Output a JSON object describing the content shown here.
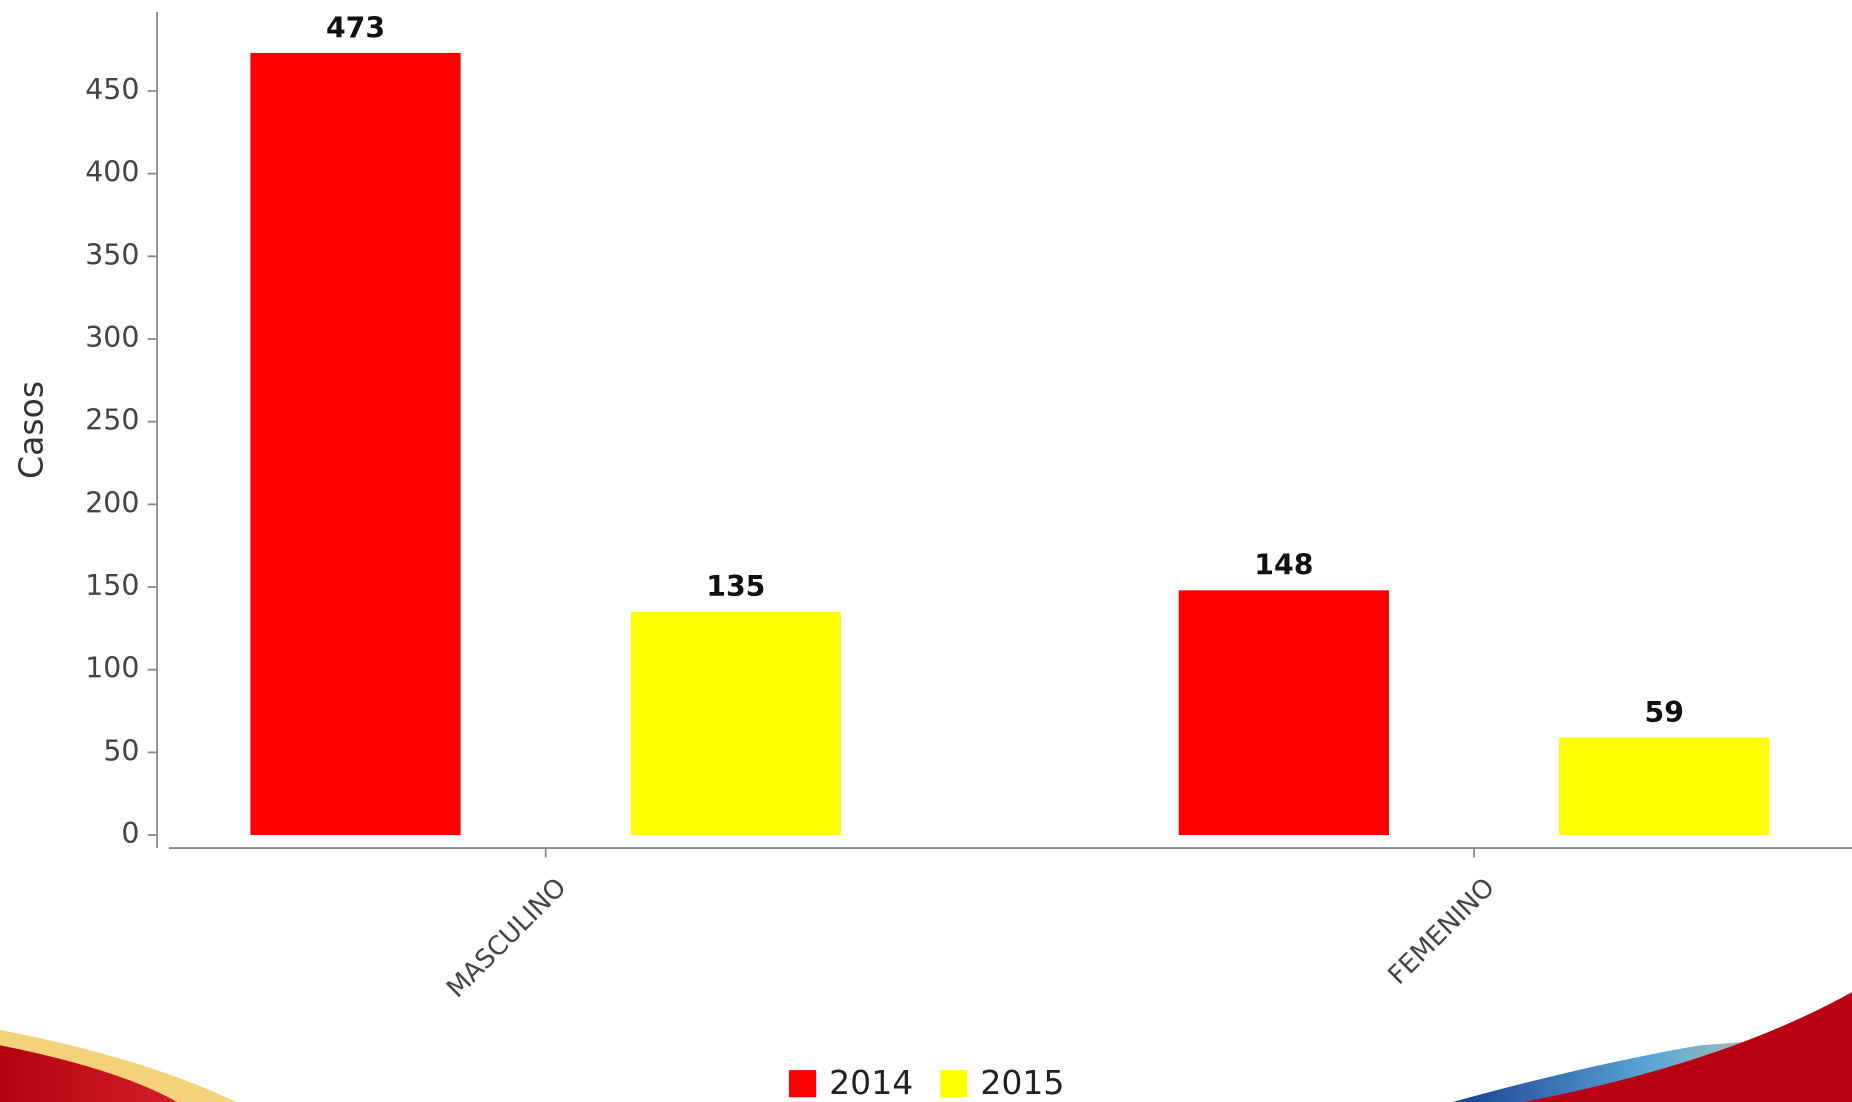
{
  "chart_data": {
    "type": "bar",
    "y_label": "Casos",
    "categories": [
      "MASCULINO",
      "FEMENINO"
    ],
    "series": [
      {
        "name": "2014",
        "color": "#ff0000",
        "values": [
          473,
          148
        ]
      },
      {
        "name": "2015",
        "color": "#ffff00",
        "values": [
          135,
          59
        ]
      }
    ],
    "ylim": [
      0,
      500
    ],
    "yticks": [
      0,
      50,
      100,
      150,
      200,
      250,
      300,
      350,
      400,
      450
    ],
    "grid": false,
    "legend": "bottom"
  }
}
